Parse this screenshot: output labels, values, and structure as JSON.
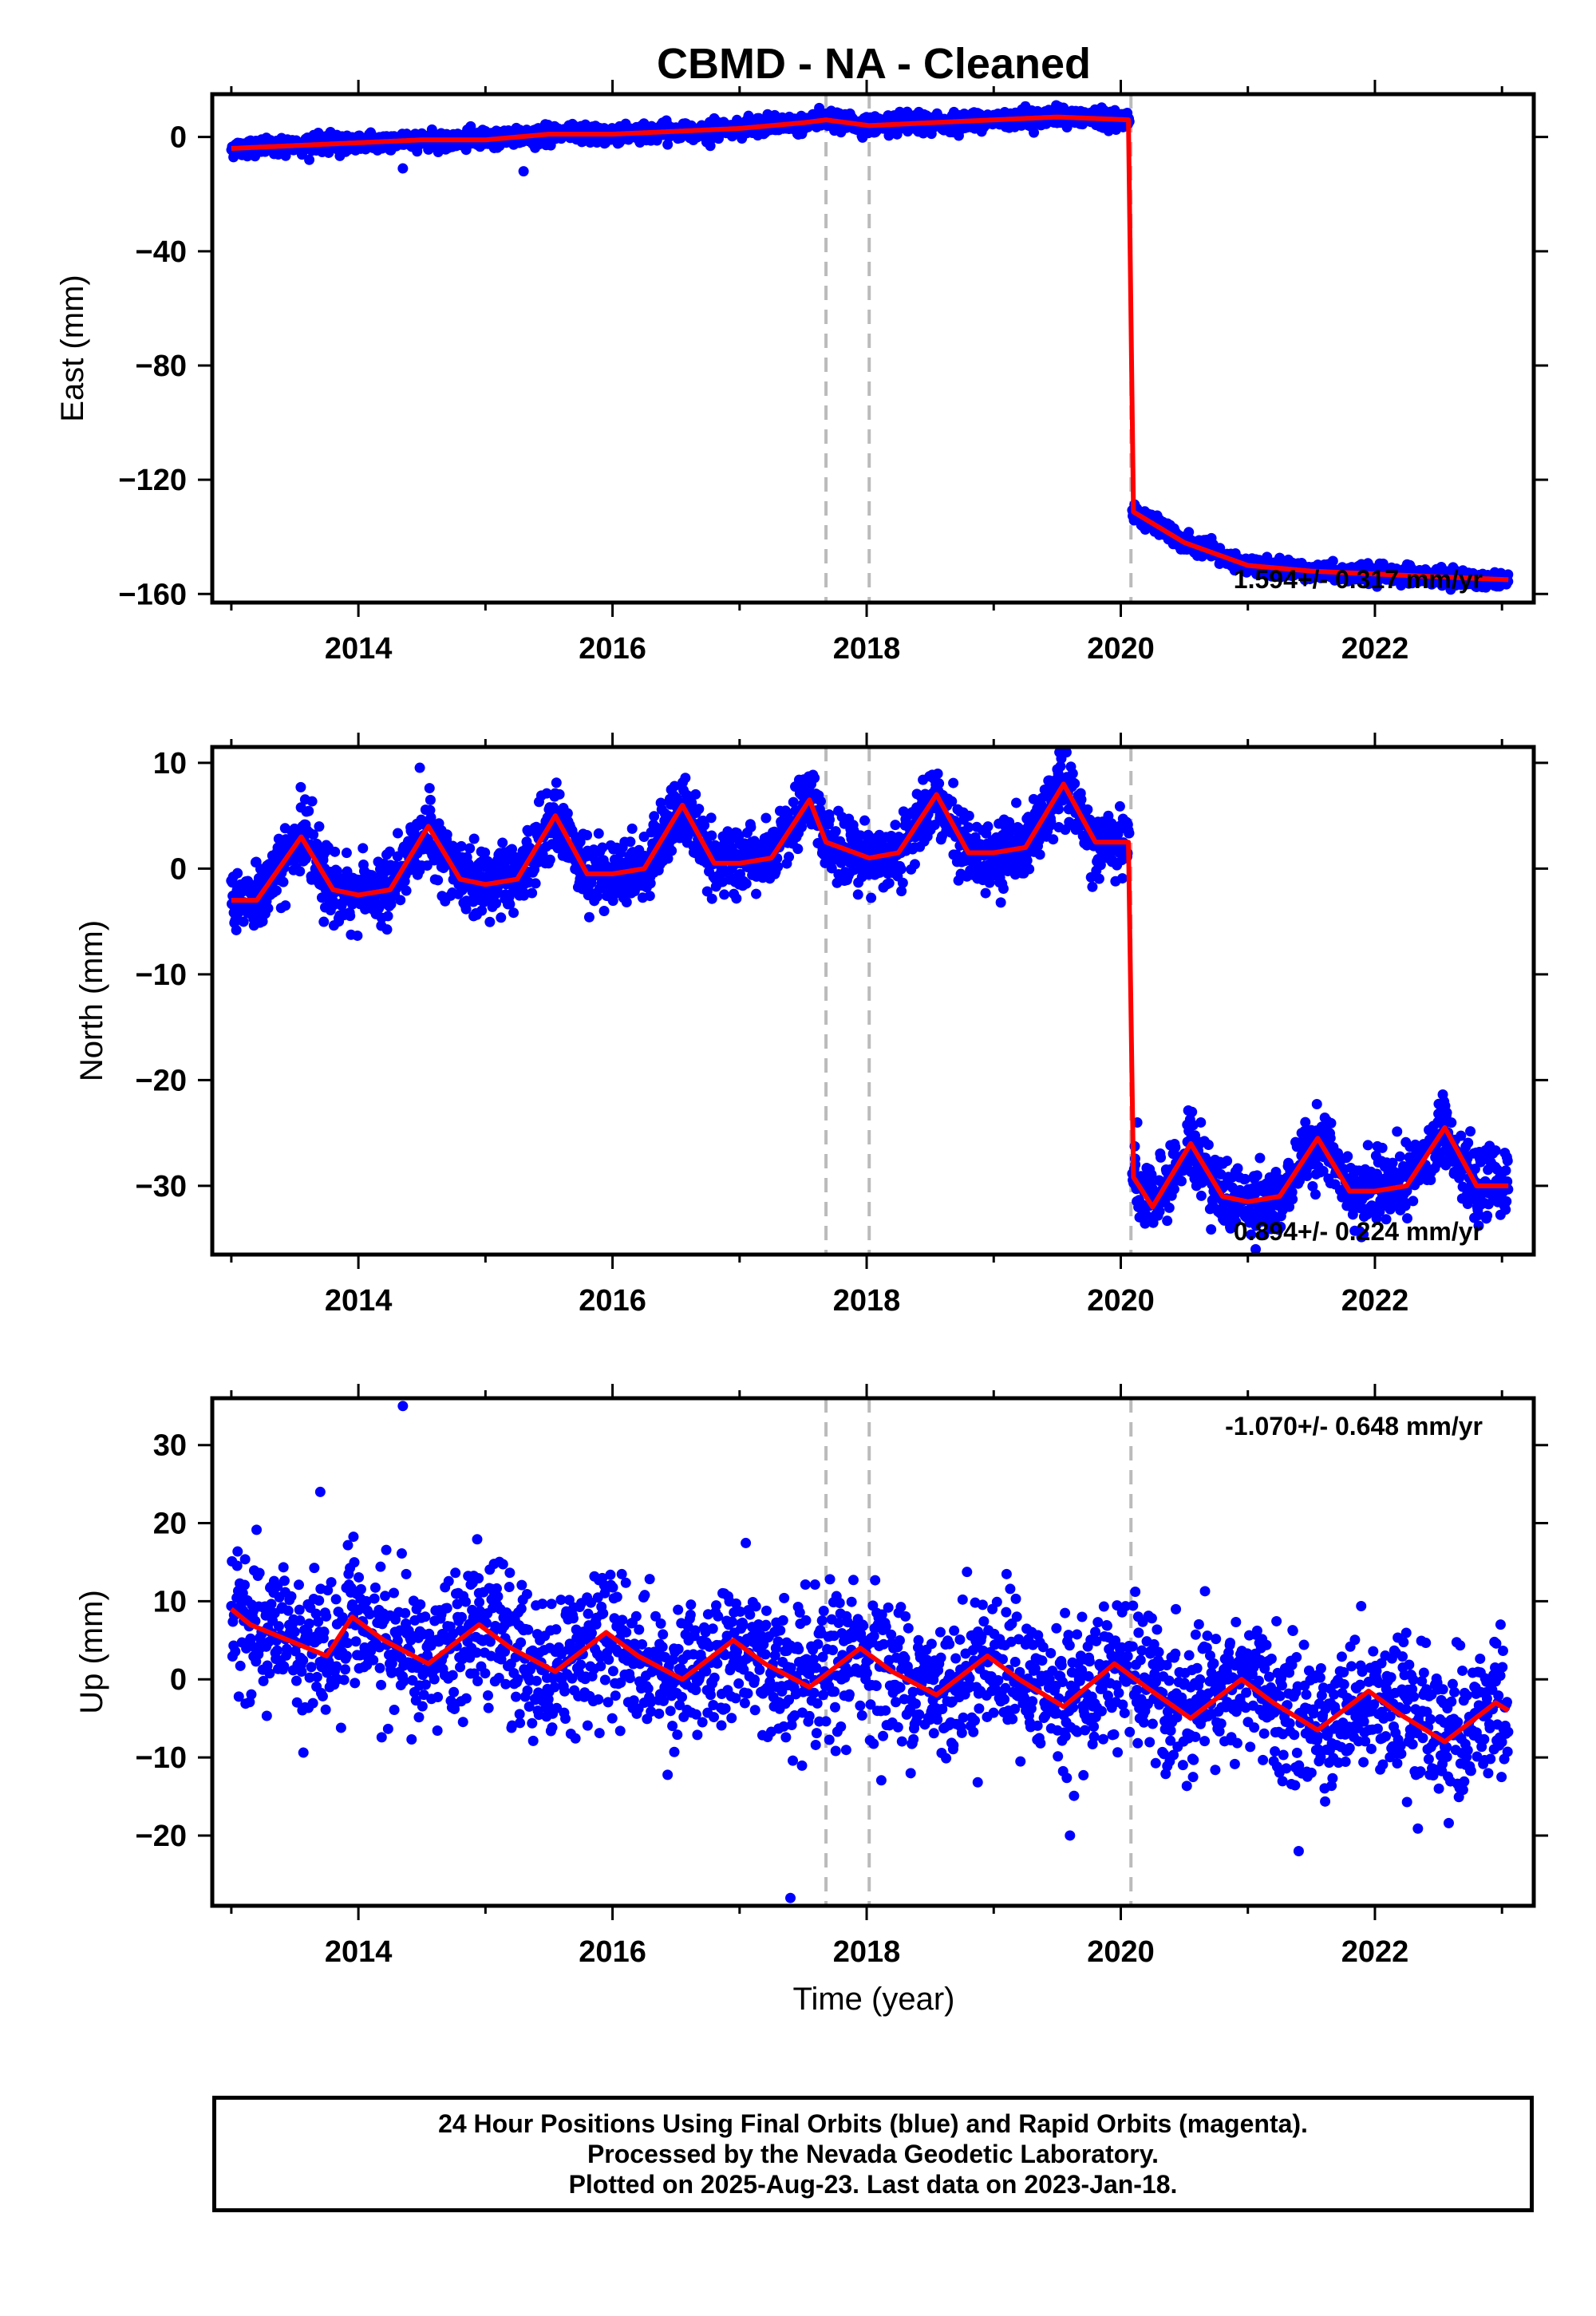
{
  "title": "CBMD  - NA - Cleaned",
  "colors": {
    "final_orbits": "#0000ff",
    "model": "#ff0000",
    "event_lines": "#bbbbbb",
    "frame": "#000000"
  },
  "x_axis": {
    "label": "Time (year)",
    "range": [
      2012.85,
      2023.25
    ],
    "ticks": [
      "2014",
      "2016",
      "2018",
      "2020",
      "2022"
    ]
  },
  "footer": {
    "line1": "24 Hour Positions Using Final Orbits (blue) and Rapid Orbits (magenta).",
    "line2": "Processed by the Nevada Geodetic Laboratory.",
    "line3": "Plotted on 2025-Aug-23. Last data on 2023-Jan-18."
  },
  "chart_data": [
    {
      "type": "scatter",
      "component": "east",
      "ylabel": "East (mm)",
      "ylim": [
        -163,
        15
      ],
      "y_ticks": [
        "0",
        "−40",
        "−80",
        "−120",
        "−160"
      ],
      "rate_text": "1.594+/- 0.317 mm/yr",
      "rate_position": "bottom-right",
      "event_lines": [
        2017.68,
        2018.02,
        2020.08
      ],
      "series": [
        {
          "kind": "daily positions (blue dots)",
          "x": [
            2013.0,
            2013.5,
            2014.0,
            2014.5,
            2015.0,
            2015.5,
            2016.0,
            2016.5,
            2017.0,
            2017.5,
            2017.68,
            2018.02,
            2018.5,
            2019.0,
            2019.5,
            2020.07,
            2020.09,
            2020.5,
            2021.0,
            2021.5,
            2022.0,
            2022.5,
            2023.05
          ],
          "y": [
            -4,
            -3,
            -2,
            -1,
            -1,
            1,
            1,
            2,
            3,
            5,
            6,
            4,
            5,
            6,
            7,
            6,
            -131,
            -142,
            -150,
            -152,
            -153,
            -154,
            -155
          ]
        },
        {
          "kind": "model (red line)",
          "x": [
            2013.0,
            2013.5,
            2014.0,
            2014.5,
            2015.0,
            2015.5,
            2016.0,
            2016.5,
            2017.0,
            2017.5,
            2017.68,
            2018.02,
            2018.5,
            2019.0,
            2019.5,
            2020.07,
            2020.09,
            2020.5,
            2021.0,
            2021.5,
            2022.0,
            2022.5,
            2023.05
          ],
          "y": [
            -4,
            -3,
            -2,
            -1,
            -1,
            1,
            1,
            2,
            3,
            5,
            6,
            4,
            5,
            6,
            7,
            6,
            -131,
            -142,
            -150,
            -152,
            -153,
            -154,
            -155
          ]
        }
      ],
      "outliers": [
        [
          2014.35,
          -11
        ],
        [
          2015.3,
          -12
        ]
      ]
    },
    {
      "type": "scatter",
      "component": "north",
      "ylabel": "North (mm)",
      "ylim": [
        -36.5,
        11.5
      ],
      "y_ticks": [
        "10",
        "0",
        "−10",
        "−20",
        "−30"
      ],
      "rate_text": "0.894+/- 0.224 mm/yr",
      "rate_position": "bottom-right",
      "event_lines": [
        2017.68,
        2018.02,
        2020.08
      ],
      "series": [
        {
          "kind": "model (red line) with annual signal",
          "x": [
            2013.0,
            2013.2,
            2013.55,
            2013.8,
            2014.0,
            2014.25,
            2014.55,
            2014.8,
            2015.0,
            2015.25,
            2015.55,
            2015.8,
            2016.0,
            2016.25,
            2016.55,
            2016.8,
            2017.0,
            2017.25,
            2017.55,
            2017.68,
            2018.02,
            2018.25,
            2018.55,
            2018.8,
            2019.0,
            2019.25,
            2019.55,
            2019.8,
            2020.07,
            2020.09,
            2020.25,
            2020.55,
            2020.8,
            2021.0,
            2021.25,
            2021.55,
            2021.8,
            2022.0,
            2022.25,
            2022.55,
            2022.8,
            2023.05
          ],
          "y": [
            -3,
            -3,
            3,
            -2,
            -2.5,
            -2,
            4,
            -1,
            -1.5,
            -1,
            5,
            -0.5,
            -0.5,
            0,
            6,
            0.5,
            0.5,
            1,
            6.5,
            2.5,
            1,
            1.5,
            7,
            1.5,
            1.5,
            2,
            8,
            2.5,
            2.5,
            -29,
            -32,
            -26,
            -31,
            -31.5,
            -31,
            -25.5,
            -30.5,
            -30.5,
            -30,
            -24.5,
            -30,
            -30
          ]
        }
      ]
    },
    {
      "type": "scatter",
      "component": "up",
      "ylabel": "Up (mm)",
      "ylim": [
        -29,
        36
      ],
      "y_ticks": [
        "30",
        "20",
        "10",
        "0",
        "−10",
        "−20"
      ],
      "rate_text": "-1.070+/- 0.648 mm/yr",
      "rate_position": "top-right",
      "event_lines": [
        2017.68,
        2018.02,
        2020.08
      ],
      "series": [
        {
          "kind": "model (red line) with annual signal",
          "x": [
            2013.0,
            2013.15,
            2013.45,
            2013.75,
            2013.95,
            2014.2,
            2014.55,
            2014.95,
            2015.2,
            2015.55,
            2015.95,
            2016.2,
            2016.55,
            2016.95,
            2017.2,
            2017.55,
            2017.95,
            2018.2,
            2018.55,
            2018.95,
            2019.2,
            2019.55,
            2019.95,
            2020.2,
            2020.55,
            2020.95,
            2021.2,
            2021.55,
            2021.95,
            2022.2,
            2022.55,
            2022.95,
            2023.05
          ],
          "y": [
            9,
            7,
            5,
            3,
            8,
            5,
            2,
            7,
            4,
            1,
            6,
            3,
            0,
            5,
            2,
            -1,
            4,
            1,
            -2,
            3,
            0,
            -3.5,
            2,
            -1,
            -5,
            0,
            -3,
            -6.5,
            -1.5,
            -4.5,
            -8,
            -3,
            -4
          ]
        }
      ],
      "outliers": [
        [
          2014.35,
          35
        ],
        [
          2017.4,
          -28
        ],
        [
          2013.7,
          24
        ],
        [
          2019.6,
          -20
        ],
        [
          2021.4,
          -22
        ]
      ]
    }
  ]
}
